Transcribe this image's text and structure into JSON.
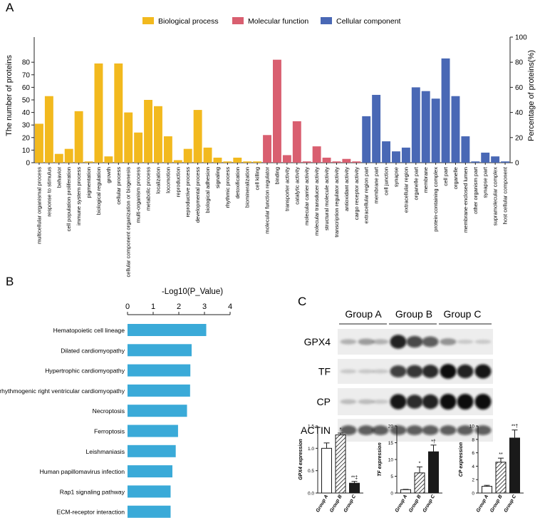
{
  "panels": {
    "a": "A",
    "b": "B",
    "c": "C"
  },
  "colors": {
    "bio": "#f2b91e",
    "mol": "#d95f70",
    "cell": "#4968b5",
    "barB": "#3aaad8",
    "dark": "#1a1a1a"
  },
  "chart_data": [
    {
      "id": "go-classification",
      "type": "bar",
      "ylabel": "The number of proteins",
      "y2label": "Percentage of proteins(%)",
      "ylim": [
        0,
        100
      ],
      "y2lim": [
        0,
        100
      ],
      "yticks": [
        0,
        10,
        20,
        30,
        40,
        50,
        60,
        70,
        80
      ],
      "y2ticks": [
        0,
        20,
        40,
        60,
        80,
        100
      ],
      "legend": [
        "Biological process",
        "Molecular function",
        "Cellular component"
      ],
      "legend_position": "top",
      "categories": [
        "multicellular organismal process",
        "response to stimulus",
        "behavior",
        "cell population proliferation",
        "immune system process",
        "pigmentation",
        "biological regulation",
        "growth",
        "cellular process",
        "cellular component organization or biogenesis",
        "multi-organism process",
        "metabolic process",
        "localization",
        "locomotion",
        "reproduction",
        "reproductive process",
        "developmental process",
        "biological adhesion",
        "signaling",
        "rhythmic process",
        "detoxification",
        "biomineralization",
        "cell killing",
        "molecular function regulator",
        "binding",
        "transporter activity",
        "catalytic activity",
        "molecular carrier activity",
        "molecular transducer activity",
        "structural molecule activity",
        "transcription regulator activity",
        "antioxidant activity",
        "cargo receptor activity",
        "extracellular region part",
        "membrane part",
        "cell junction",
        "synapse",
        "extracellular region",
        "organelle part",
        "membrane",
        "protein-containing complex",
        "cell part",
        "organelle",
        "membrane-enclosed lumen",
        "other organism part",
        "synapse part",
        "supramolecular complex",
        "host cellular component"
      ],
      "groups": [
        0,
        0,
        0,
        0,
        0,
        0,
        0,
        0,
        0,
        0,
        0,
        0,
        0,
        0,
        0,
        0,
        0,
        0,
        0,
        0,
        0,
        0,
        0,
        1,
        1,
        1,
        1,
        1,
        1,
        1,
        1,
        1,
        1,
        2,
        2,
        2,
        2,
        2,
        2,
        2,
        2,
        2,
        2,
        2,
        2,
        2,
        2,
        2
      ],
      "values": [
        31,
        53,
        7,
        11,
        41,
        1,
        79,
        5,
        79,
        40,
        24,
        50,
        45,
        21,
        2,
        11,
        42,
        12,
        4,
        1,
        4,
        1,
        1,
        22,
        82,
        6,
        33,
        1,
        13,
        4,
        1,
        3,
        1,
        37,
        54,
        17,
        9,
        12,
        60,
        57,
        51,
        83,
        53,
        21,
        1,
        8,
        5,
        1
      ],
      "percent_scale": true
    },
    {
      "id": "kegg-enrichment",
      "type": "bar",
      "orientation": "horizontal",
      "title": "-Log10(P_Value)",
      "xlim": [
        0,
        4
      ],
      "xticks": [
        0,
        1,
        2,
        3,
        4
      ],
      "categories": [
        "Hematopoietic cell lineage",
        "Dilated cardiomyopathy",
        "Hypertrophic cardiomyopathy",
        "Arrhythmogenic right ventricular cardiomyopathy",
        "Necroptosis",
        "Ferroptosis",
        "Leishmaniasis",
        "Human papillomavirus infection",
        "Rap1 signaling pathway",
        "ECM-receptor interaction"
      ],
      "values": [
        3.07,
        2.5,
        2.45,
        2.44,
        2.32,
        1.97,
        1.88,
        1.75,
        1.68,
        1.68
      ]
    },
    {
      "id": "gpx4-expression",
      "type": "bar",
      "ylabel": "GPX4 expression",
      "ylim": [
        0,
        1.5
      ],
      "yticks": [
        "0.0",
        "0.5",
        "1.0",
        "1.5"
      ],
      "categories": [
        "Group A",
        "Group B",
        "Group C"
      ],
      "values": [
        1.0,
        1.3,
        0.22
      ],
      "errors": [
        0.12,
        0.04,
        0.04
      ],
      "patterns": [
        "open",
        "hatched",
        "solid"
      ],
      "annotations": [
        "",
        "*",
        "**‡"
      ]
    },
    {
      "id": "tf-expression",
      "type": "bar",
      "ylabel": "TF expression",
      "ylim": [
        0,
        20
      ],
      "yticks": [
        "0",
        "5",
        "10",
        "15",
        "20"
      ],
      "categories": [
        "Group A",
        "Group B",
        "Group C"
      ],
      "values": [
        1.0,
        6.0,
        12.3
      ],
      "errors": [
        0.1,
        1.8,
        2.0
      ],
      "patterns": [
        "open",
        "hatched",
        "solid"
      ],
      "annotations": [
        "",
        "*",
        "*†"
      ]
    },
    {
      "id": "cp-expression",
      "type": "bar",
      "ylabel": "CP expression",
      "ylim": [
        0,
        10
      ],
      "yticks": [
        "0",
        "2",
        "4",
        "6",
        "8",
        "10"
      ],
      "categories": [
        "Group A",
        "Group B",
        "Group C"
      ],
      "values": [
        1.0,
        4.6,
        8.2
      ],
      "errors": [
        0.15,
        0.6,
        1.2
      ],
      "patterns": [
        "open",
        "hatched",
        "solid"
      ],
      "annotations": [
        "",
        "**",
        "**†"
      ]
    }
  ],
  "western_blot": {
    "groups": [
      "Group A",
      "Group B",
      "Group C"
    ],
    "rows": [
      {
        "label": "GPX4",
        "intensities": [
          0.15,
          0.25,
          0.15,
          0.9,
          0.7,
          0.6,
          0.3,
          0.05,
          0.05
        ]
      },
      {
        "label": "TF",
        "intensities": [
          0.05,
          0.05,
          0.05,
          0.75,
          0.8,
          0.85,
          1.0,
          0.9,
          0.95
        ]
      },
      {
        "label": "CP",
        "intensities": [
          0.1,
          0.1,
          0.05,
          0.95,
          0.85,
          0.9,
          1.0,
          1.0,
          1.0
        ]
      },
      {
        "label": "ACTIN",
        "intensities": [
          0.6,
          0.6,
          0.6,
          0.6,
          0.6,
          0.6,
          0.6,
          0.6,
          0.6
        ]
      }
    ]
  }
}
